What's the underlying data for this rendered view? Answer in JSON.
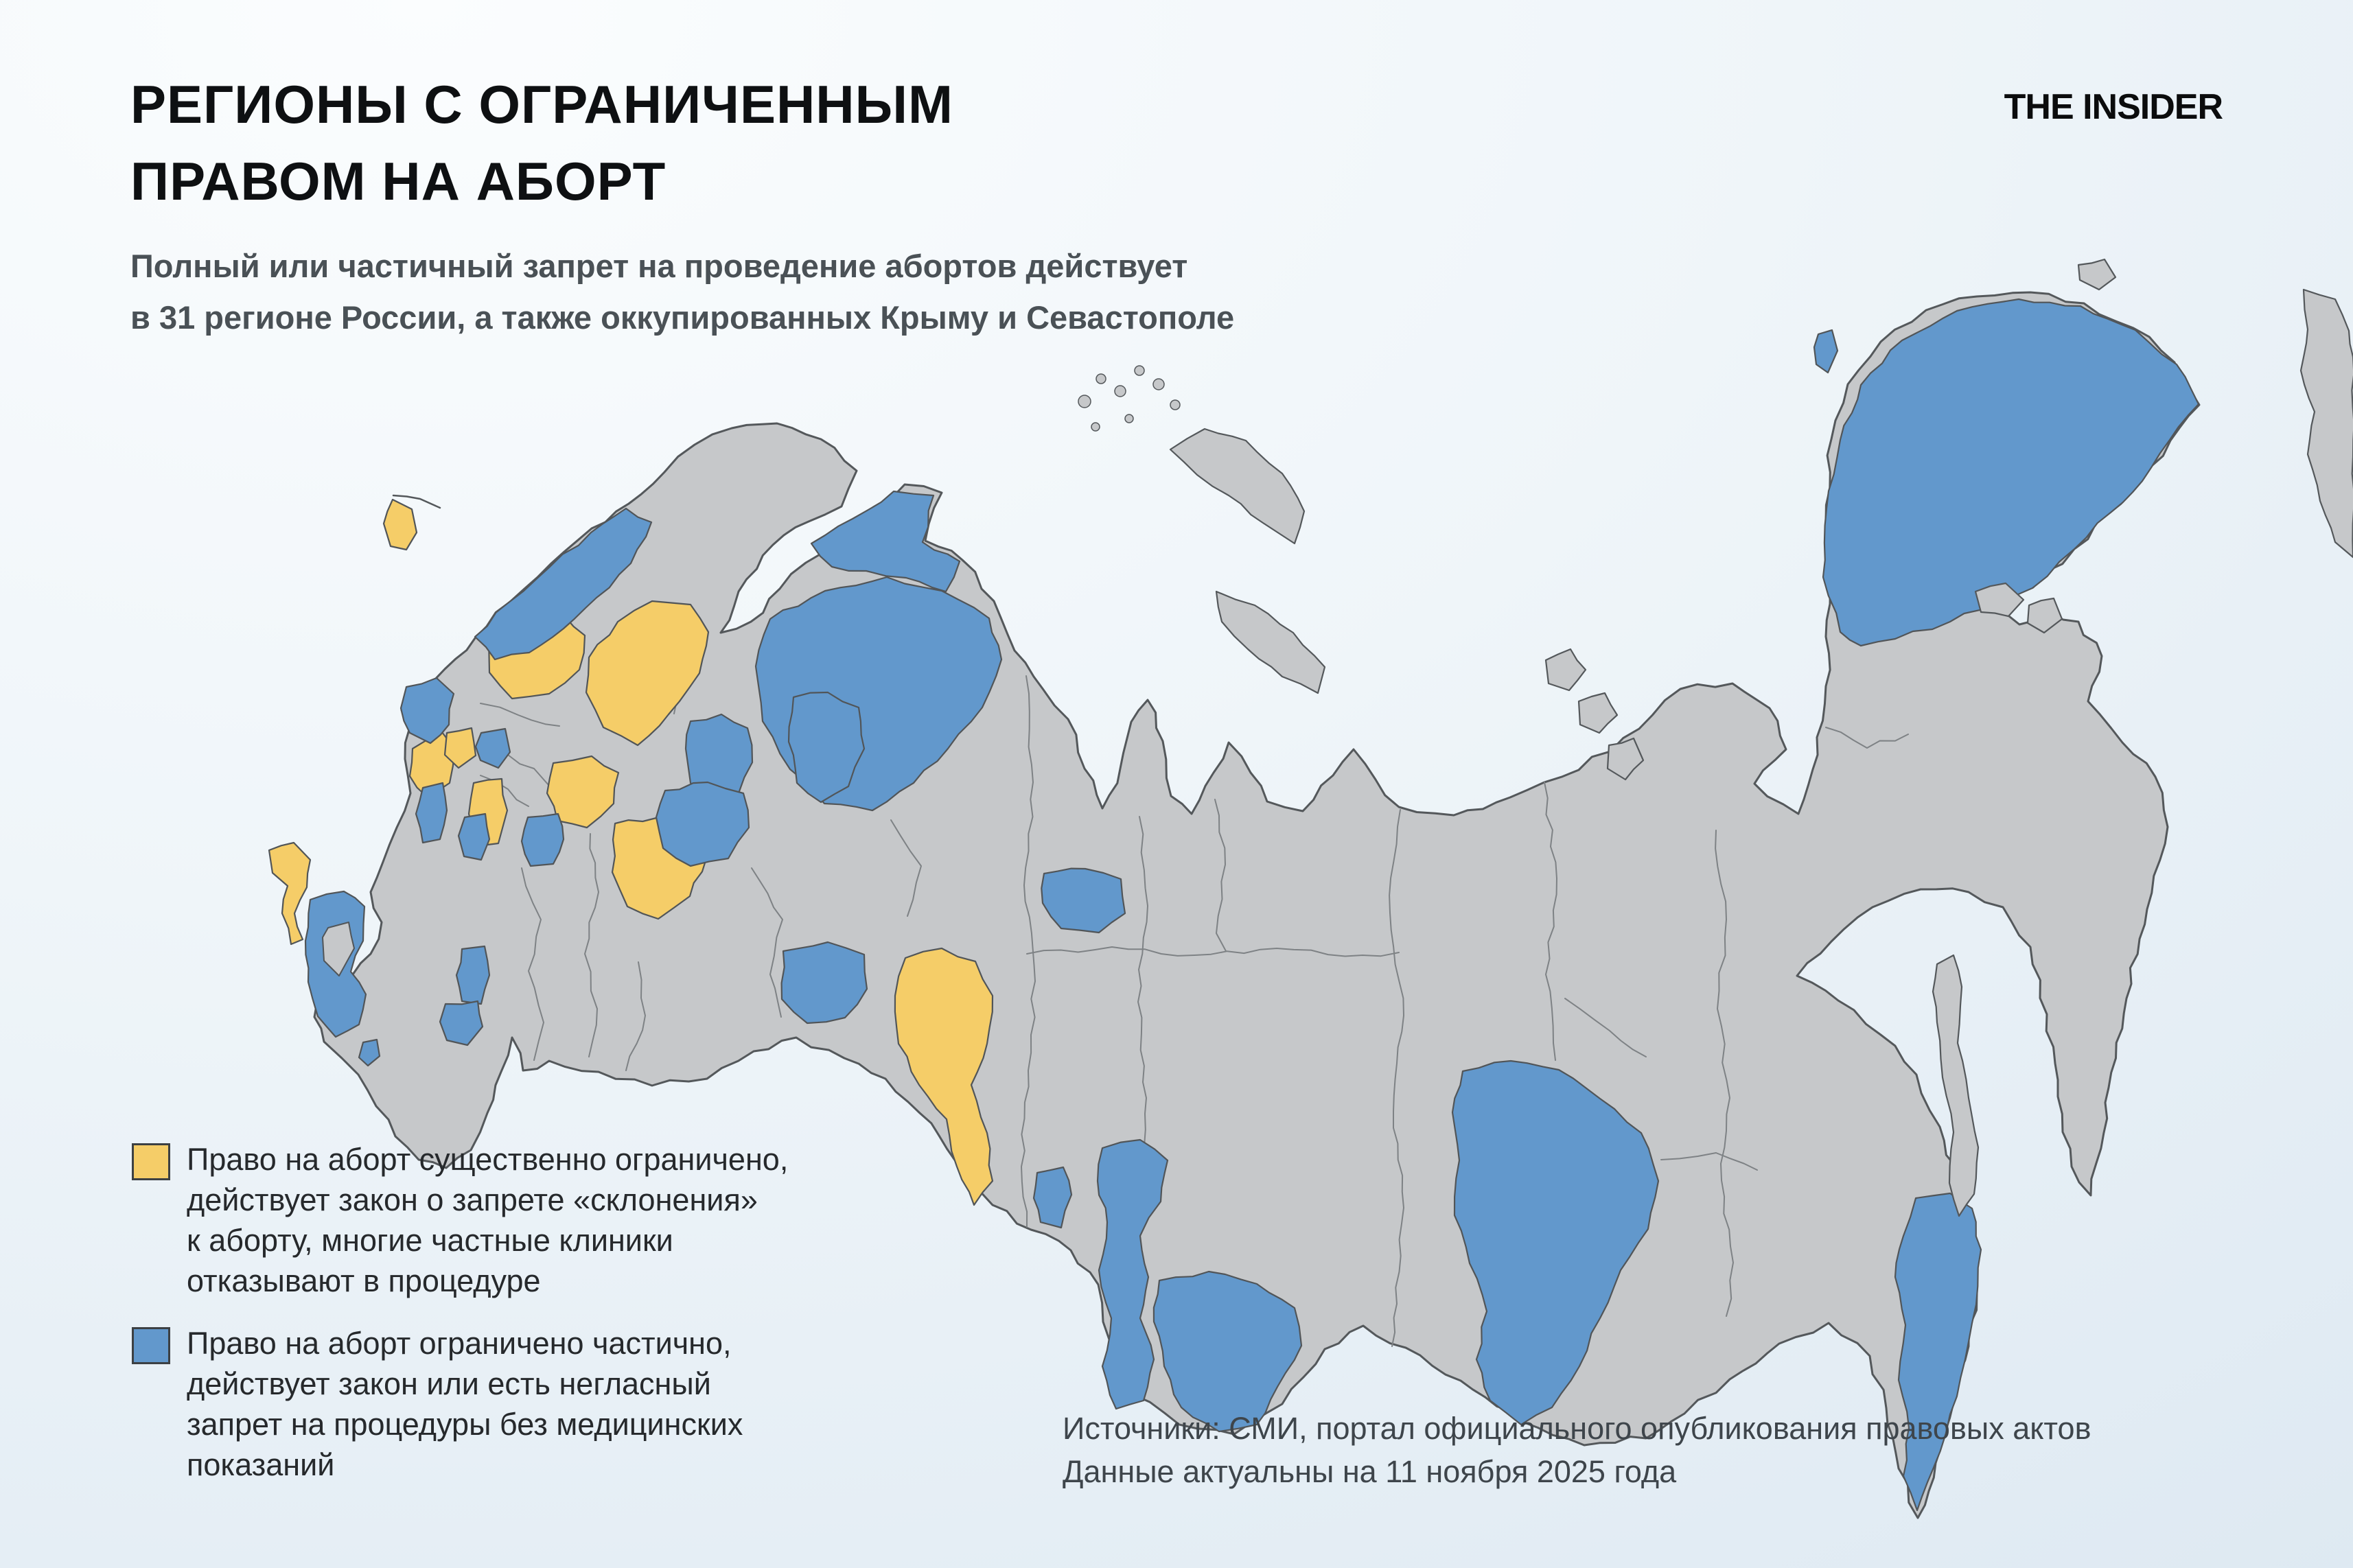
{
  "page": {
    "background_gradient": [
      "#FBFDFE",
      "#DEE9F2"
    ]
  },
  "header": {
    "title_line1": "РЕГИОНЫ С ОГРАНИЧЕННЫМ",
    "title_line2": "ПРАВОМ НА АБОРТ",
    "subtitle": "Полный или частичный запрет на проведение абортов действует\nв 31 регионе России, а также оккупированных Крыму и Севастополе",
    "logo": "THE INSIDER"
  },
  "legend": {
    "items": [
      {
        "key": "restricted",
        "color": "#F5CD68",
        "label": "Право на аборт существенно ограничено,\nдействует закон о запрете «склонения»\nк аборту, многие частные клиники\nотказывают в процедуре"
      },
      {
        "key": "partial",
        "color": "#6298CC",
        "label": "Право на аборт ограничено частично,\nдействует закон или есть негласный\nзапрет на процедуры без медицинских\nпоказаний"
      }
    ]
  },
  "source": {
    "text": "Источники: СМИ, портал официального опубликования правовых актов\nДанные актуальны на 11 ноября 2025 года"
  },
  "map": {
    "colors": {
      "land": "#C6C8CA",
      "land_border": "#54585B",
      "inner_border": "#7E8285",
      "region_border": "#515558",
      "restricted": "#F5CD68",
      "partial": "#6298CC"
    }
  }
}
